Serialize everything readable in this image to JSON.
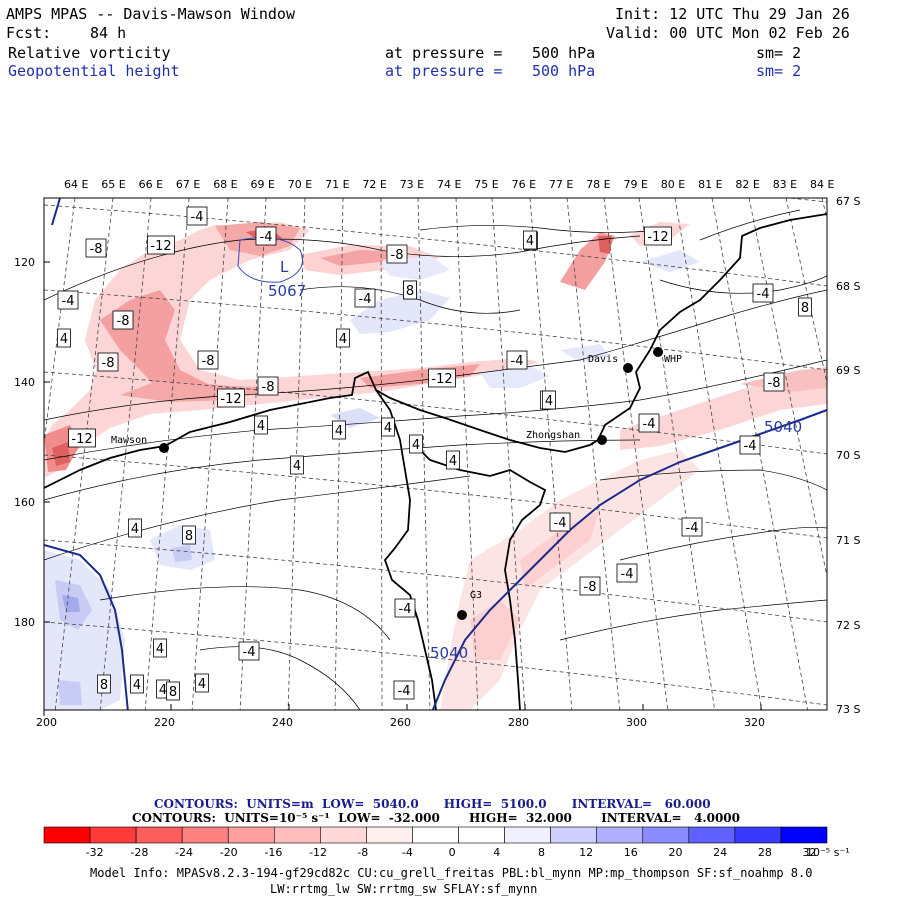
{
  "header": {
    "title": "AMPS MPAS -- Davis-Mawson Window",
    "init": "Init: 12 UTC Thu 29 Jan 26",
    "fcst_label": "Fcst:",
    "fcst_value": "84 h",
    "valid": "Valid: 00 UTC Mon 02 Feb 26"
  },
  "fields": [
    {
      "name": "Relative vorticity",
      "pressure_label": "at pressure =",
      "pressure": "500 hPa",
      "sm": "sm= 2"
    },
    {
      "name": "Geopotential height",
      "pressure_label": "at pressure =",
      "pressure": "500 hPa",
      "sm": "sm= 2"
    }
  ],
  "top_lon_labels": [
    "64 E",
    "65 E",
    "66 E",
    "67 E",
    "68 E",
    "69 E",
    "70 E",
    "71 E",
    "72 E",
    "73 E",
    "74 E",
    "75 E",
    "76 E",
    "77 E",
    "78 E",
    "79 E",
    "80 E",
    "81 E",
    "82 E",
    "83 E",
    "84 E"
  ],
  "right_lat_labels": [
    "67 S",
    "68 S",
    "69 S",
    "70 S",
    "71 S",
    "72 S",
    "73 S"
  ],
  "left_y_labels": [
    "120",
    "140",
    "160",
    "180"
  ],
  "bottom_x_labels": [
    "200",
    "220",
    "240",
    "260",
    "280",
    "300",
    "320"
  ],
  "stations": [
    {
      "name": "Mawson"
    },
    {
      "name": "Davis"
    },
    {
      "name": "WHP"
    },
    {
      "name": "Zhongshan"
    },
    {
      "name": "G3"
    }
  ],
  "height_labels": [
    "5067",
    "5040",
    "5040"
  ],
  "low_marker": "L",
  "vort_labels": [
    "-4",
    "-8",
    "-12",
    "-4",
    "-8",
    "-12",
    "4",
    "8",
    "-8",
    "-4",
    "-8",
    "-12",
    "-8",
    "-12",
    "-8",
    "-12",
    "4",
    "4",
    "4",
    "4",
    "4",
    "4",
    "4",
    "8",
    "-4",
    "-4",
    "4",
    "8",
    "-8",
    "-4",
    "-4",
    "-4",
    "-8",
    "-4",
    "4",
    "4",
    "4",
    "8",
    "4",
    "4",
    "8",
    "4",
    "-4",
    "-4",
    "-4",
    "-4",
    "4",
    "-4",
    "8",
    "4"
  ],
  "contour_info": {
    "line1": "CONTOURS:  UNITS=m  LOW=  5040.0      HIGH=  5100.0      INTERVAL=   60.000",
    "line2": "CONTOURS:  UNITS=10⁻⁵ s⁻¹  LOW=  -32.000       HIGH=  32.000       INTERVAL=   4.0000"
  },
  "colorbar": {
    "ticks": [
      "-32",
      "-28",
      "-24",
      "-20",
      "-16",
      "-12",
      "-8",
      "-4",
      "0",
      "4",
      "8",
      "12",
      "16",
      "20",
      "24",
      "28",
      "32"
    ],
    "unit": "10⁻⁵ s⁻¹",
    "colors": [
      "#ff0000",
      "#ff3a3a",
      "#ff5e5e",
      "#ff8080",
      "#ffa0a0",
      "#ffbcbc",
      "#ffd8d8",
      "#fff0f0",
      "#ffffff",
      "#ffffff",
      "#f0f0ff",
      "#d0d0ff",
      "#b0b0ff",
      "#8c8cff",
      "#6060ff",
      "#3a3aff",
      "#0000ff"
    ]
  },
  "model_info": {
    "line1": "Model Info: MPASv8.2.3-194-gf29cd82c CU:cu_grell_freitas PBL:bl_mynn MP:mp_thompson SF:sf_noahmp 8.0",
    "line2": "LW:rrtmg_lw SW:rrtmg_sw SFLAY:sf_mynn"
  },
  "colors": {
    "vort_pos": "#f4a0a0",
    "vort_neg": "#c8ccf4",
    "height_contour": "#1a2a8c",
    "coast": "#000000"
  }
}
